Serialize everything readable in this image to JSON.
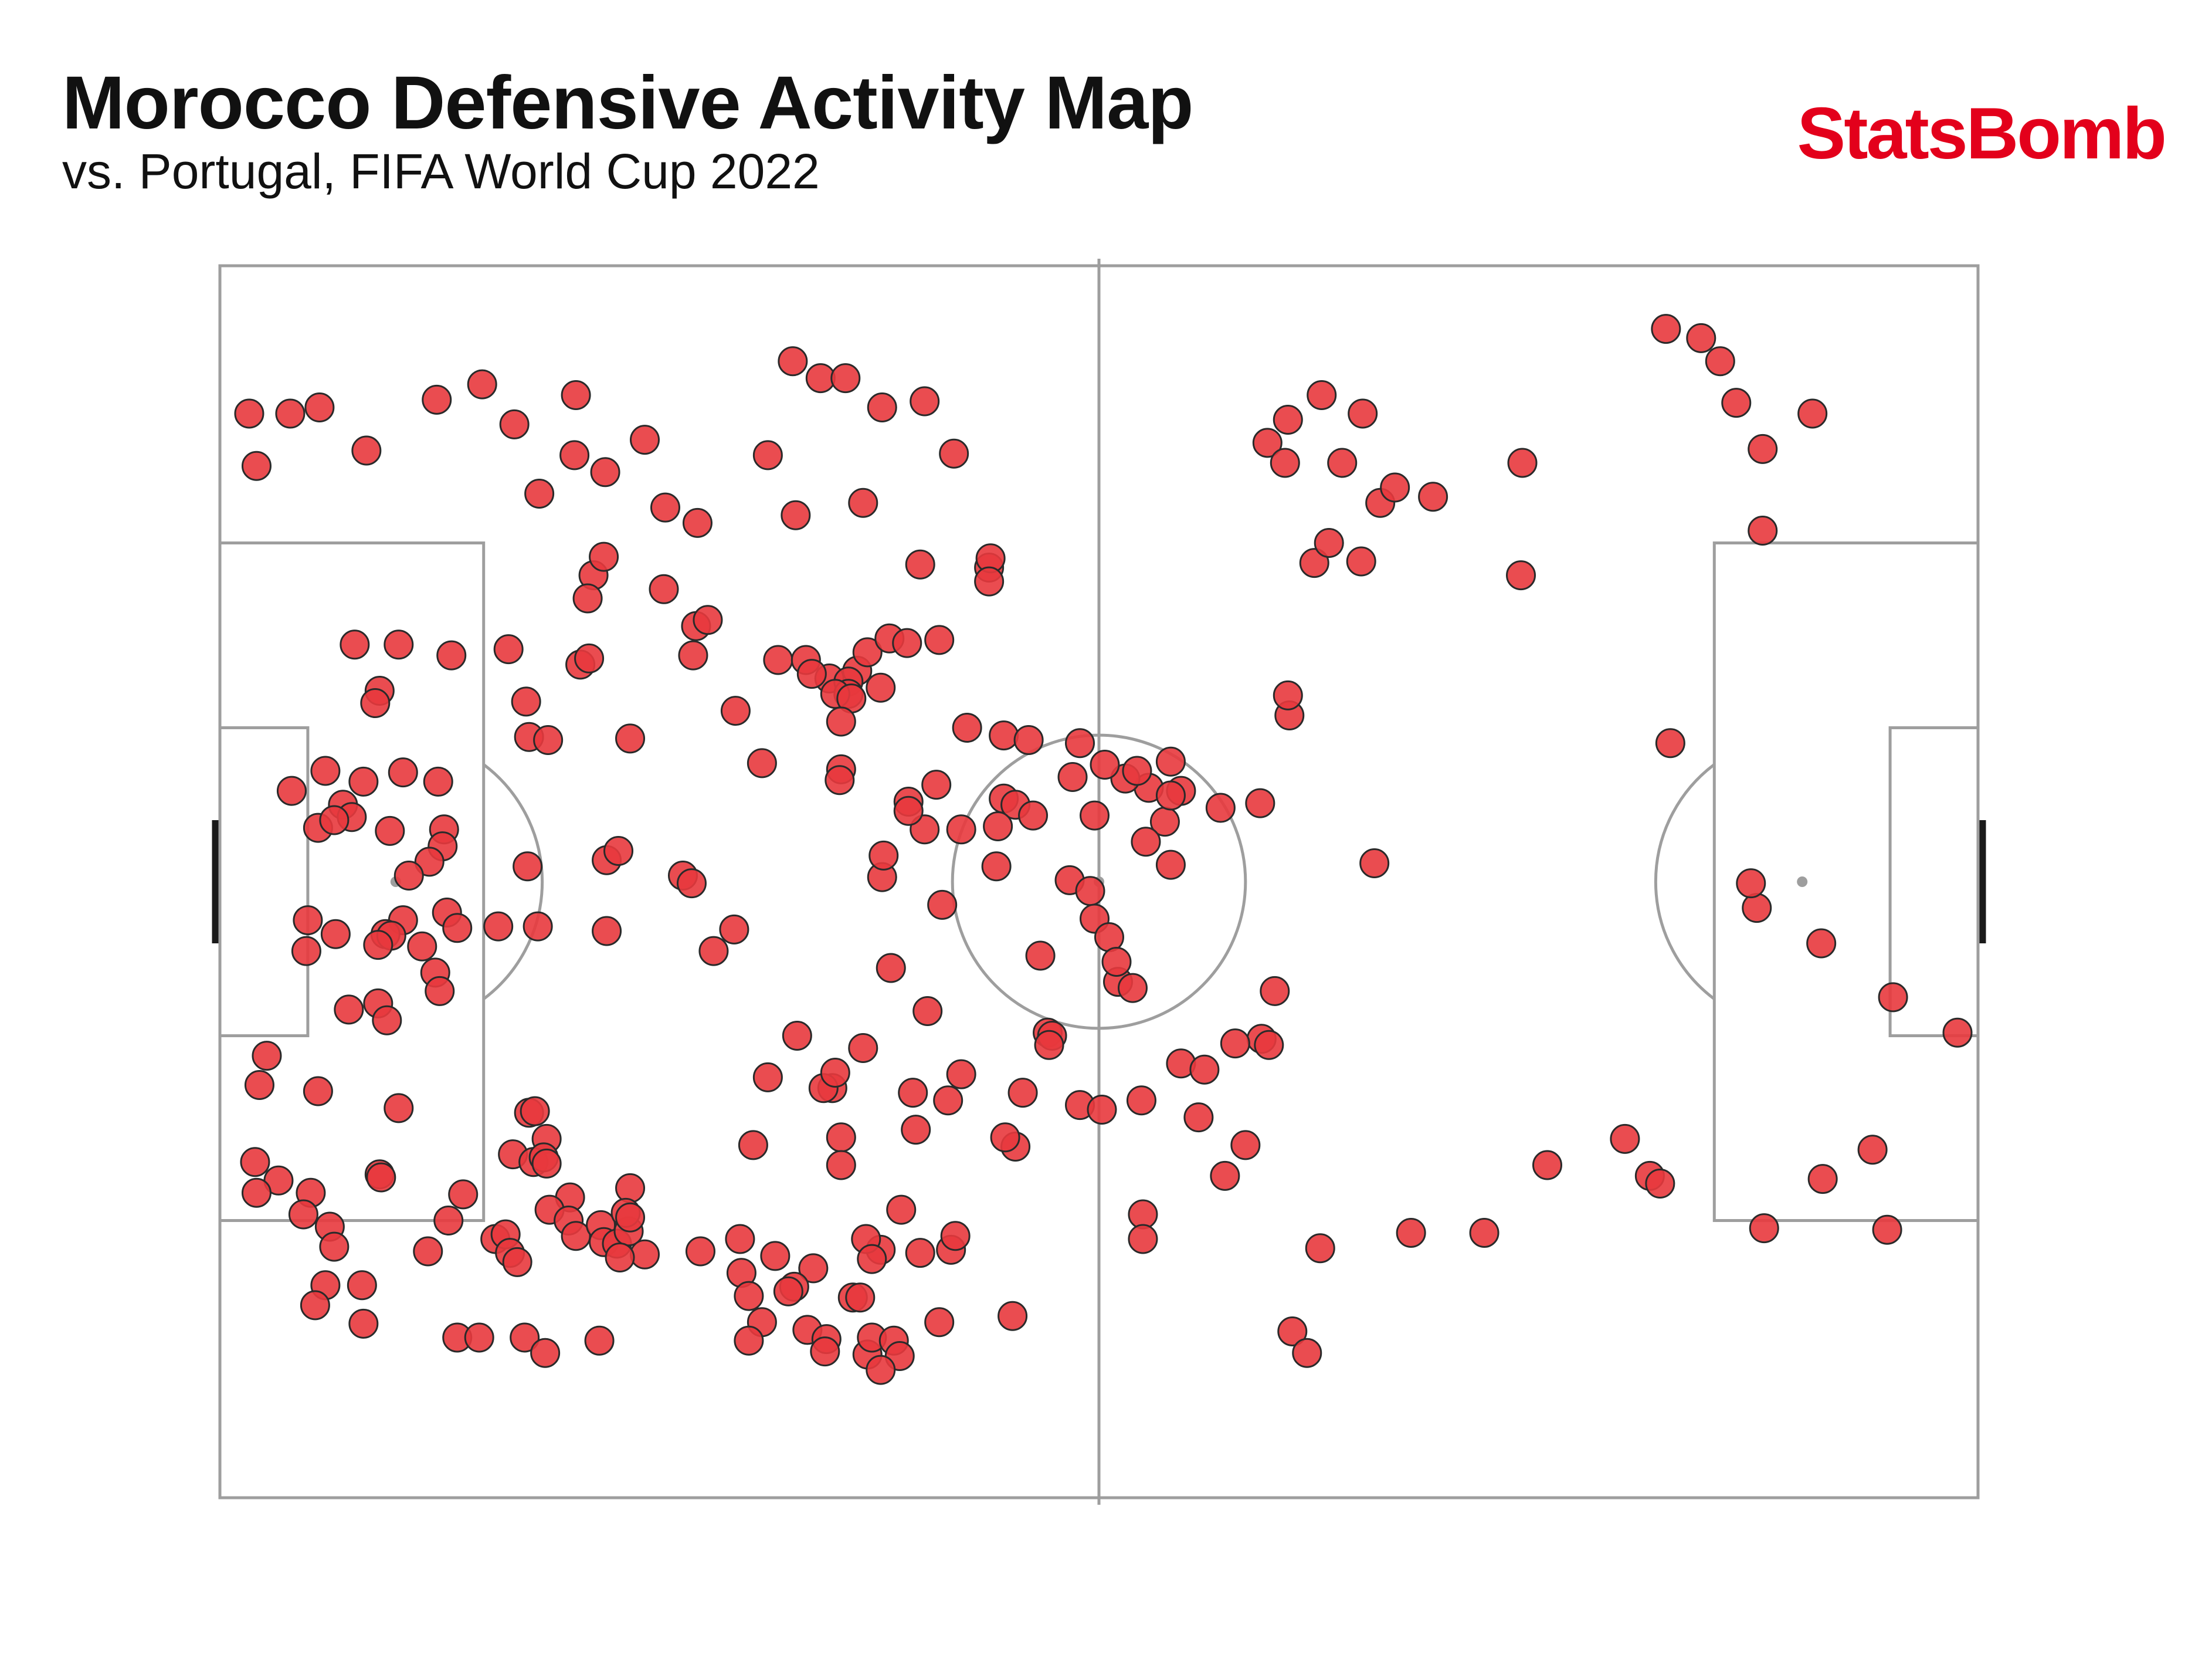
{
  "header": {
    "title": "Morocco Defensive Activity Map",
    "subtitle": "vs. Portugal, FIFA World Cup 2022",
    "brand": "StatsBomb",
    "brand_color": "#e3001b"
  },
  "colors": {
    "pitch_line": "#9e9e9e",
    "goal": "#1a1a1a",
    "marker_fill": "#e8383d",
    "marker_edge": "#2a2a2a"
  },
  "chart_data": {
    "type": "scatter",
    "coordinate_system": "StatsBomb pitch (120 x 80)",
    "xlim": [
      0,
      120
    ],
    "ylim": [
      0,
      80
    ],
    "grid": false,
    "points": [
      [
        2.0,
        9.6
      ],
      [
        4.8,
        9.6
      ],
      [
        6.8,
        9.2
      ],
      [
        2.5,
        13.0
      ],
      [
        10.0,
        12.0
      ],
      [
        14.8,
        8.7
      ],
      [
        17.9,
        7.7
      ],
      [
        20.1,
        10.3
      ],
      [
        24.3,
        8.4
      ],
      [
        24.2,
        12.3
      ],
      [
        21.8,
        14.8
      ],
      [
        26.3,
        13.4
      ],
      [
        29.0,
        11.3
      ],
      [
        30.4,
        15.7
      ],
      [
        32.6,
        16.7
      ],
      [
        39.1,
        6.2
      ],
      [
        41.0,
        7.3
      ],
      [
        42.7,
        7.3
      ],
      [
        45.2,
        9.2
      ],
      [
        48.1,
        8.8
      ],
      [
        37.4,
        12.3
      ],
      [
        50.1,
        12.2
      ],
      [
        43.9,
        15.4
      ],
      [
        39.3,
        16.2
      ],
      [
        25.5,
        20.1
      ],
      [
        26.2,
        18.9
      ],
      [
        25.1,
        21.6
      ],
      [
        30.3,
        21.0
      ],
      [
        32.5,
        23.4
      ],
      [
        33.3,
        23.0
      ],
      [
        47.8,
        19.4
      ],
      [
        52.5,
        19.6
      ],
      [
        52.6,
        19.0
      ],
      [
        52.5,
        20.5
      ],
      [
        49.1,
        24.3
      ],
      [
        9.2,
        24.6
      ],
      [
        12.2,
        24.6
      ],
      [
        15.8,
        25.3
      ],
      [
        19.7,
        24.9
      ],
      [
        24.6,
        25.9
      ],
      [
        25.2,
        25.5
      ],
      [
        32.3,
        25.3
      ],
      [
        38.1,
        25.6
      ],
      [
        40.0,
        25.6
      ],
      [
        41.6,
        26.8
      ],
      [
        43.5,
        26.3
      ],
      [
        42.9,
        27.0
      ],
      [
        42.9,
        27.8
      ],
      [
        40.4,
        26.5
      ],
      [
        42.0,
        27.8
      ],
      [
        43.1,
        28.1
      ],
      [
        45.1,
        27.4
      ],
      [
        44.2,
        25.1
      ],
      [
        45.7,
        24.2
      ],
      [
        46.9,
        24.5
      ],
      [
        42.4,
        29.6
      ],
      [
        10.9,
        27.6
      ],
      [
        10.6,
        28.4
      ],
      [
        20.9,
        28.3
      ],
      [
        21.1,
        30.6
      ],
      [
        22.4,
        30.8
      ],
      [
        28.0,
        30.7
      ],
      [
        35.2,
        28.9
      ],
      [
        37.0,
        32.3
      ],
      [
        42.4,
        32.7
      ],
      [
        42.3,
        33.4
      ],
      [
        53.5,
        30.5
      ],
      [
        55.2,
        30.8
      ],
      [
        51.0,
        30.0
      ],
      [
        53.5,
        34.6
      ],
      [
        54.3,
        35.0
      ],
      [
        58.7,
        31.0
      ],
      [
        58.2,
        33.2
      ],
      [
        59.7,
        35.7
      ],
      [
        63.4,
        33.9
      ],
      [
        61.8,
        33.3
      ],
      [
        64.9,
        32.2
      ],
      [
        64.5,
        36.1
      ],
      [
        65.6,
        34.1
      ],
      [
        68.3,
        35.2
      ],
      [
        71.0,
        34.9
      ],
      [
        73.0,
        29.2
      ],
      [
        7.2,
        32.8
      ],
      [
        9.8,
        33.5
      ],
      [
        12.5,
        32.9
      ],
      [
        14.9,
        33.5
      ],
      [
        4.9,
        34.1
      ],
      [
        8.4,
        35.0
      ],
      [
        9.0,
        35.8
      ],
      [
        6.7,
        36.5
      ],
      [
        7.8,
        36.0
      ],
      [
        11.6,
        36.7
      ],
      [
        15.3,
        36.6
      ],
      [
        15.2,
        37.7
      ],
      [
        14.3,
        38.7
      ],
      [
        12.9,
        39.6
      ],
      [
        12.5,
        42.5
      ],
      [
        15.5,
        42.0
      ],
      [
        16.2,
        43.0
      ],
      [
        19.0,
        42.9
      ],
      [
        21.7,
        42.9
      ],
      [
        6.0,
        42.5
      ],
      [
        5.9,
        44.5
      ],
      [
        7.9,
        43.4
      ],
      [
        11.3,
        43.4
      ],
      [
        11.7,
        43.5
      ],
      [
        10.8,
        44.1
      ],
      [
        13.8,
        44.2
      ],
      [
        14.7,
        45.9
      ],
      [
        15.0,
        47.1
      ],
      [
        10.8,
        47.9
      ],
      [
        8.8,
        48.3
      ],
      [
        11.4,
        49.0
      ],
      [
        21.0,
        39.0
      ],
      [
        26.4,
        38.6
      ],
      [
        27.2,
        38.0
      ],
      [
        31.6,
        39.6
      ],
      [
        32.2,
        40.1
      ],
      [
        26.4,
        43.2
      ],
      [
        35.1,
        43.1
      ],
      [
        33.7,
        44.5
      ],
      [
        45.8,
        45.6
      ],
      [
        49.3,
        41.5
      ],
      [
        45.2,
        39.7
      ],
      [
        48.1,
        36.6
      ],
      [
        50.6,
        36.6
      ],
      [
        53.1,
        36.4
      ],
      [
        48.9,
        33.7
      ],
      [
        47.0,
        34.8
      ],
      [
        47.0,
        35.4
      ],
      [
        45.3,
        38.3
      ],
      [
        55.5,
        35.7
      ],
      [
        58.0,
        39.9
      ],
      [
        59.4,
        40.6
      ],
      [
        59.7,
        42.4
      ],
      [
        64.9,
        38.9
      ],
      [
        63.2,
        37.4
      ],
      [
        53.0,
        39.0
      ],
      [
        56.0,
        44.8
      ],
      [
        60.7,
        43.6
      ],
      [
        61.3,
        46.5
      ],
      [
        56.5,
        49.8
      ],
      [
        56.8,
        50.0
      ],
      [
        56.6,
        50.6
      ],
      [
        48.3,
        48.4
      ],
      [
        43.9,
        50.8
      ],
      [
        39.4,
        50.0
      ],
      [
        41.8,
        53.4
      ],
      [
        41.2,
        53.4
      ],
      [
        42.0,
        52.4
      ],
      [
        37.4,
        52.7
      ],
      [
        50.6,
        52.5
      ],
      [
        47.3,
        53.7
      ],
      [
        49.7,
        54.2
      ],
      [
        54.8,
        53.7
      ],
      [
        54.3,
        57.2
      ],
      [
        58.7,
        54.5
      ],
      [
        60.2,
        54.8
      ],
      [
        62.9,
        54.2
      ],
      [
        65.6,
        51.8
      ],
      [
        67.2,
        52.2
      ],
      [
        71.1,
        50.2
      ],
      [
        53.6,
        56.6
      ],
      [
        47.5,
        56.1
      ],
      [
        42.4,
        56.6
      ],
      [
        42.4,
        58.4
      ],
      [
        36.4,
        57.1
      ],
      [
        3.2,
        51.3
      ],
      [
        2.7,
        53.2
      ],
      [
        6.7,
        53.6
      ],
      [
        12.2,
        54.7
      ],
      [
        2.4,
        58.2
      ],
      [
        4.0,
        59.4
      ],
      [
        2.5,
        60.2
      ],
      [
        6.2,
        60.2
      ],
      [
        10.9,
        59.0
      ],
      [
        11.0,
        59.2
      ],
      [
        16.6,
        60.3
      ],
      [
        15.6,
        62.0
      ],
      [
        20.0,
        57.7
      ],
      [
        21.1,
        55.0
      ],
      [
        21.5,
        54.9
      ],
      [
        22.3,
        56.7
      ],
      [
        21.4,
        58.2
      ],
      [
        22.1,
        57.9
      ],
      [
        22.3,
        58.3
      ],
      [
        23.9,
        60.5
      ],
      [
        5.7,
        61.6
      ],
      [
        7.5,
        62.4
      ],
      [
        7.8,
        63.7
      ],
      [
        14.2,
        64.0
      ],
      [
        18.8,
        63.2
      ],
      [
        19.5,
        62.9
      ],
      [
        19.8,
        64.1
      ],
      [
        22.5,
        61.3
      ],
      [
        23.8,
        62.0
      ],
      [
        20.3,
        64.7
      ],
      [
        24.3,
        63.0
      ],
      [
        26.0,
        62.3
      ],
      [
        26.2,
        63.4
      ],
      [
        27.1,
        63.5
      ],
      [
        27.9,
        62.7
      ],
      [
        29.0,
        64.2
      ],
      [
        27.3,
        64.4
      ],
      [
        28.0,
        59.9
      ],
      [
        27.7,
        61.5
      ],
      [
        28.0,
        61.8
      ],
      [
        32.8,
        64.0
      ],
      [
        35.5,
        63.2
      ],
      [
        37.9,
        64.3
      ],
      [
        45.1,
        63.9
      ],
      [
        44.1,
        63.2
      ],
      [
        44.5,
        64.5
      ],
      [
        40.5,
        65.1
      ],
      [
        39.2,
        66.3
      ],
      [
        35.6,
        65.4
      ],
      [
        36.1,
        66.9
      ],
      [
        38.8,
        66.6
      ],
      [
        43.2,
        67.0
      ],
      [
        43.7,
        67.0
      ],
      [
        47.8,
        64.1
      ],
      [
        49.9,
        63.9
      ],
      [
        46.5,
        61.3
      ],
      [
        50.2,
        63.0
      ],
      [
        7.2,
        66.2
      ],
      [
        6.5,
        67.5
      ],
      [
        9.7,
        66.2
      ],
      [
        9.8,
        68.7
      ],
      [
        16.2,
        69.6
      ],
      [
        17.7,
        69.6
      ],
      [
        20.8,
        69.6
      ],
      [
        22.2,
        70.6
      ],
      [
        25.9,
        69.8
      ],
      [
        37.0,
        68.6
      ],
      [
        36.1,
        69.8
      ],
      [
        40.1,
        69.1
      ],
      [
        41.4,
        69.7
      ],
      [
        41.3,
        70.5
      ],
      [
        44.2,
        70.7
      ],
      [
        44.5,
        69.6
      ],
      [
        46.0,
        69.8
      ],
      [
        46.4,
        70.8
      ],
      [
        45.1,
        71.7
      ],
      [
        49.1,
        68.6
      ],
      [
        54.1,
        68.2
      ],
      [
        60.4,
        32.4
      ],
      [
        62.6,
        32.8
      ],
      [
        64.9,
        34.4
      ],
      [
        61.2,
        45.2
      ],
      [
        62.3,
        46.9
      ],
      [
        66.8,
        55.3
      ],
      [
        70.0,
        57.1
      ],
      [
        68.6,
        59.1
      ],
      [
        63.0,
        61.6
      ],
      [
        63.0,
        63.2
      ],
      [
        73.2,
        69.2
      ],
      [
        74.2,
        70.6
      ],
      [
        75.1,
        63.8
      ],
      [
        81.3,
        62.8
      ],
      [
        86.3,
        62.8
      ],
      [
        90.6,
        58.4
      ],
      [
        95.9,
        56.7
      ],
      [
        97.6,
        59.1
      ],
      [
        98.3,
        59.6
      ],
      [
        109.4,
        59.3
      ],
      [
        112.8,
        57.4
      ],
      [
        113.8,
        62.6
      ],
      [
        105.4,
        62.5
      ],
      [
        118.6,
        49.8
      ],
      [
        114.2,
        47.5
      ],
      [
        109.3,
        44.0
      ],
      [
        104.9,
        41.7
      ],
      [
        104.5,
        40.1
      ],
      [
        99.0,
        31.0
      ],
      [
        78.8,
        38.8
      ],
      [
        72.0,
        47.1
      ],
      [
        71.6,
        50.6
      ],
      [
        69.3,
        50.5
      ],
      [
        72.9,
        27.9
      ],
      [
        71.5,
        11.5
      ],
      [
        72.9,
        10.0
      ],
      [
        72.7,
        12.8
      ],
      [
        75.2,
        8.4
      ],
      [
        78.0,
        9.6
      ],
      [
        76.6,
        12.8
      ],
      [
        79.2,
        15.4
      ],
      [
        80.2,
        14.4
      ],
      [
        82.8,
        15.0
      ],
      [
        74.7,
        19.3
      ],
      [
        77.9,
        19.2
      ],
      [
        75.7,
        18.0
      ],
      [
        88.8,
        20.1
      ],
      [
        88.9,
        12.8
      ],
      [
        98.7,
        4.1
      ],
      [
        101.1,
        4.7
      ],
      [
        102.4,
        6.2
      ],
      [
        103.5,
        8.9
      ],
      [
        105.3,
        11.9
      ],
      [
        105.3,
        17.2
      ],
      [
        108.7,
        9.6
      ]
    ]
  }
}
